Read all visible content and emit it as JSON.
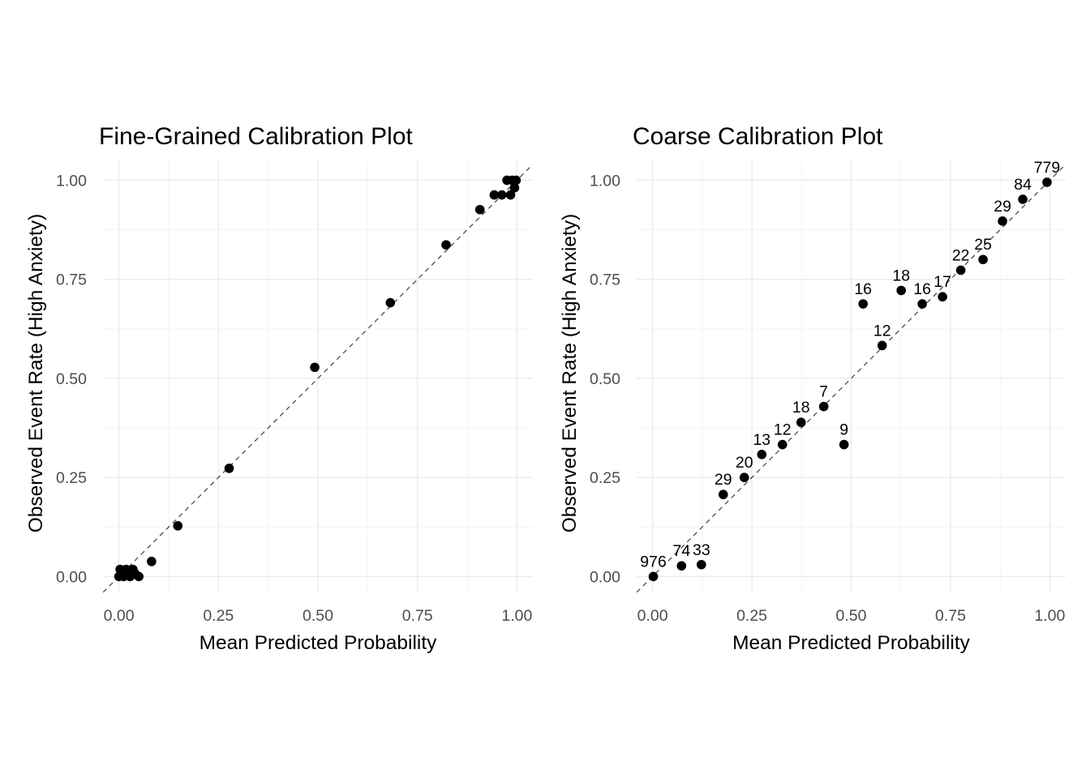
{
  "chart_data": [
    {
      "type": "scatter",
      "title": "Fine-Grained Calibration Plot",
      "xlabel": "Mean Predicted Probability",
      "ylabel": "Observed Event Rate (High Anxiety)",
      "xlim": [
        -0.04,
        1.04
      ],
      "ylim": [
        -0.04,
        1.05
      ],
      "xticks": [
        "0.00",
        "0.25",
        "0.50",
        "0.75",
        "1.00"
      ],
      "yticks": [
        "0.00",
        "0.25",
        "0.50",
        "0.75",
        "1.00"
      ],
      "reference_line": "y = x (dashed)",
      "grid": true,
      "points": [
        {
          "x": 0.0,
          "y": 0.0
        },
        {
          "x": 0.003,
          "y": 0.018
        },
        {
          "x": 0.008,
          "y": 0.005
        },
        {
          "x": 0.012,
          "y": 0.0
        },
        {
          "x": 0.018,
          "y": 0.018
        },
        {
          "x": 0.022,
          "y": 0.005
        },
        {
          "x": 0.028,
          "y": 0.0
        },
        {
          "x": 0.035,
          "y": 0.018
        },
        {
          "x": 0.04,
          "y": 0.008
        },
        {
          "x": 0.05,
          "y": 0.0
        },
        {
          "x": 0.082,
          "y": 0.038
        },
        {
          "x": 0.148,
          "y": 0.128
        },
        {
          "x": 0.277,
          "y": 0.273
        },
        {
          "x": 0.492,
          "y": 0.528
        },
        {
          "x": 0.682,
          "y": 0.691
        },
        {
          "x": 0.822,
          "y": 0.837
        },
        {
          "x": 0.907,
          "y": 0.926
        },
        {
          "x": 0.943,
          "y": 0.963
        },
        {
          "x": 0.962,
          "y": 0.963
        },
        {
          "x": 0.975,
          "y": 1.0
        },
        {
          "x": 0.984,
          "y": 0.963
        },
        {
          "x": 0.988,
          "y": 1.0
        },
        {
          "x": 0.994,
          "y": 0.981
        },
        {
          "x": 0.998,
          "y": 1.0
        }
      ]
    },
    {
      "type": "scatter",
      "title": "Coarse Calibration Plot",
      "xlabel": "Mean Predicted Probability",
      "ylabel": "Observed Event Rate (High Anxiety)",
      "xlim": [
        -0.04,
        1.04
      ],
      "ylim": [
        -0.04,
        1.05
      ],
      "xticks": [
        "0.00",
        "0.25",
        "0.50",
        "0.75",
        "1.00"
      ],
      "yticks": [
        "0.00",
        "0.25",
        "0.50",
        "0.75",
        "1.00"
      ],
      "reference_line": "y = x (dashed)",
      "grid": true,
      "points": [
        {
          "x": 0.002,
          "y": 0.0,
          "label": "976"
        },
        {
          "x": 0.073,
          "y": 0.027,
          "label": "74"
        },
        {
          "x": 0.123,
          "y": 0.03,
          "label": "33"
        },
        {
          "x": 0.178,
          "y": 0.207,
          "label": "29"
        },
        {
          "x": 0.231,
          "y": 0.25,
          "label": "20"
        },
        {
          "x": 0.275,
          "y": 0.308,
          "label": "13"
        },
        {
          "x": 0.327,
          "y": 0.333,
          "label": "12"
        },
        {
          "x": 0.374,
          "y": 0.389,
          "label": "18"
        },
        {
          "x": 0.431,
          "y": 0.429,
          "label": "7"
        },
        {
          "x": 0.482,
          "y": 0.333,
          "label": "9"
        },
        {
          "x": 0.53,
          "y": 0.688,
          "label": "16"
        },
        {
          "x": 0.578,
          "y": 0.583,
          "label": "12"
        },
        {
          "x": 0.626,
          "y": 0.722,
          "label": "18"
        },
        {
          "x": 0.679,
          "y": 0.688,
          "label": "16"
        },
        {
          "x": 0.73,
          "y": 0.706,
          "label": "17"
        },
        {
          "x": 0.776,
          "y": 0.773,
          "label": "22"
        },
        {
          "x": 0.832,
          "y": 0.8,
          "label": "25"
        },
        {
          "x": 0.881,
          "y": 0.897,
          "label": "29"
        },
        {
          "x": 0.932,
          "y": 0.952,
          "label": "84"
        },
        {
          "x": 0.993,
          "y": 0.995,
          "label": "779"
        }
      ]
    }
  ]
}
